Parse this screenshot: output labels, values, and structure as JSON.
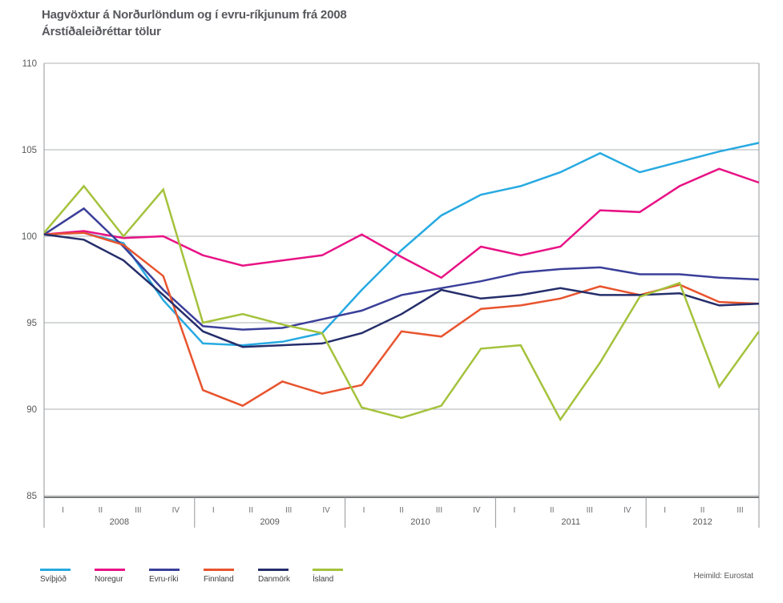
{
  "header": {
    "title": "Hagvöxtur á Norðurlöndum og í evru-ríkjunum frá 2008",
    "subtitle": "Árstíðaleiðréttar tölur"
  },
  "footer": {
    "source": "Heimild: Eurostat"
  },
  "chart_data": {
    "type": "line",
    "title": "Hagvöxtur á Norðurlöndum og í evru-ríkjunum frá 2008",
    "subtitle": "Árstíðaleiðréttar tölur",
    "ylim": [
      85,
      110
    ],
    "y_ticks": [
      110,
      105,
      100,
      95,
      90,
      85
    ],
    "grid": "horizontal",
    "legend_position": "bottom-left",
    "x_years": [
      {
        "year": "2008",
        "quarters": [
          "I",
          "II",
          "III",
          "IV"
        ]
      },
      {
        "year": "2009",
        "quarters": [
          "I",
          "II",
          "III",
          "IV"
        ]
      },
      {
        "year": "2010",
        "quarters": [
          "I",
          "II",
          "III",
          "IV"
        ]
      },
      {
        "year": "2011",
        "quarters": [
          "I",
          "II",
          "III",
          "IV"
        ]
      },
      {
        "year": "2012",
        "quarters": [
          "I",
          "II",
          "III"
        ]
      }
    ],
    "series": [
      {
        "name": "Svíþjóð",
        "color": "#27aae1",
        "values": [
          100.1,
          100.2,
          99.6,
          96.3,
          93.8,
          93.7,
          93.9,
          94.4,
          96.9,
          99.2,
          101.2,
          102.4,
          102.9,
          103.7,
          104.8,
          103.7,
          104.3,
          104.9,
          105.4
        ]
      },
      {
        "name": "Noregur",
        "color": "#e81285",
        "values": [
          100.1,
          100.3,
          99.9,
          100.0,
          98.9,
          98.3,
          98.6,
          98.9,
          100.1,
          98.8,
          97.6,
          99.4,
          98.9,
          99.4,
          101.5,
          101.4,
          102.9,
          103.9,
          103.1
        ]
      },
      {
        "name": "Evru-ríki",
        "color": "#3a3f99",
        "values": [
          100.1,
          101.6,
          99.4,
          96.9,
          94.8,
          94.6,
          94.7,
          95.2,
          95.7,
          96.6,
          97.0,
          97.4,
          97.9,
          98.1,
          98.2,
          97.8,
          97.8,
          97.6,
          97.5
        ]
      },
      {
        "name": "Finnland",
        "color": "#e8542e",
        "values": [
          100.1,
          100.2,
          99.5,
          97.7,
          91.1,
          90.2,
          91.6,
          90.9,
          91.4,
          94.5,
          94.2,
          95.8,
          96.0,
          96.4,
          97.1,
          96.6,
          97.2,
          96.2,
          96.1
        ]
      },
      {
        "name": "Danmörk",
        "color": "#252e6b",
        "values": [
          100.1,
          99.8,
          98.6,
          96.6,
          94.5,
          93.6,
          93.7,
          93.8,
          94.4,
          95.5,
          96.9,
          96.4,
          96.6,
          97.0,
          96.6,
          96.6,
          96.7,
          96.0,
          96.1
        ]
      },
      {
        "name": "Ísland",
        "color": "#a4c23c",
        "values": [
          100.2,
          102.9,
          100.0,
          102.7,
          95.0,
          95.5,
          94.9,
          94.4,
          90.1,
          89.5,
          90.2,
          93.5,
          93.7,
          89.4,
          92.7,
          96.5,
          97.3,
          91.3,
          94.5
        ]
      }
    ]
  }
}
